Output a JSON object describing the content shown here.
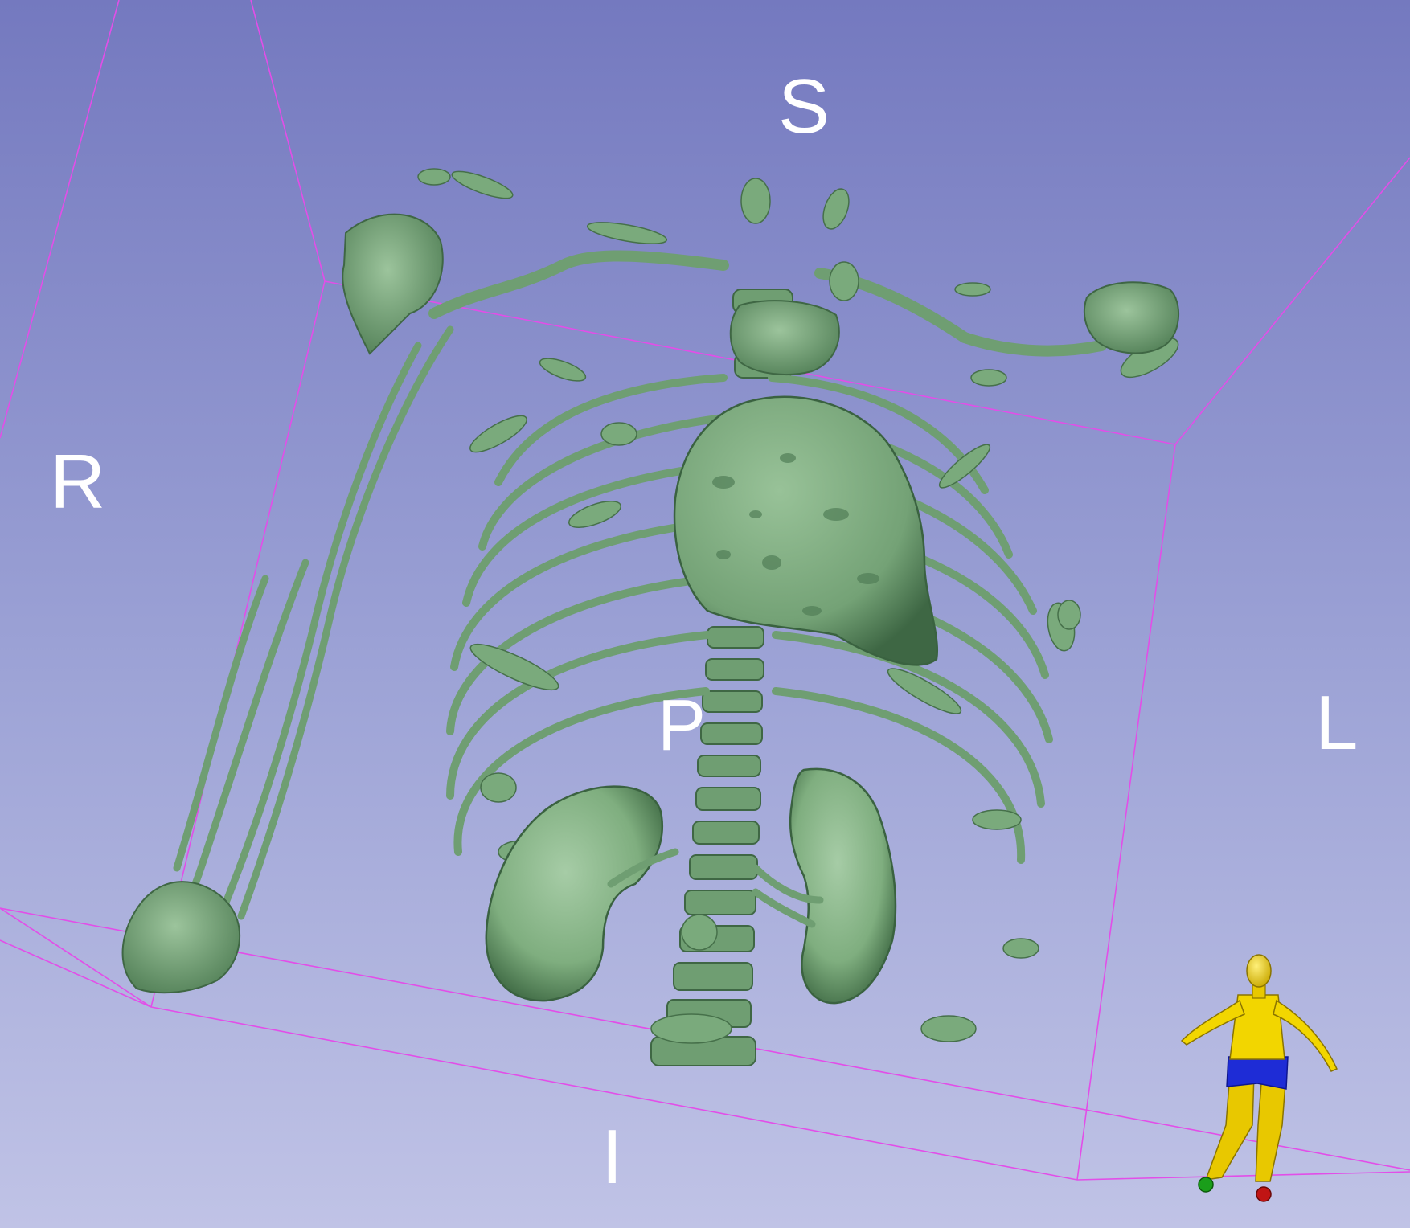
{
  "view": {
    "type": "3d-volume-rendering",
    "background_top": "#7479bf",
    "background_bottom": "#c0c3e6",
    "bounding_box_color": "#e24ee8",
    "model_color": "#86b486",
    "orientation_labels": {
      "superior": "S",
      "right": "R",
      "left": "L",
      "posterior": "P",
      "inferior": "I"
    },
    "orientation_marker": {
      "type": "human-figure",
      "body_color": "#f2d600",
      "shorts_color": "#1e2cd6",
      "left_foot_color": "#1a9e1a",
      "right_foot_color": "#c01414"
    }
  }
}
